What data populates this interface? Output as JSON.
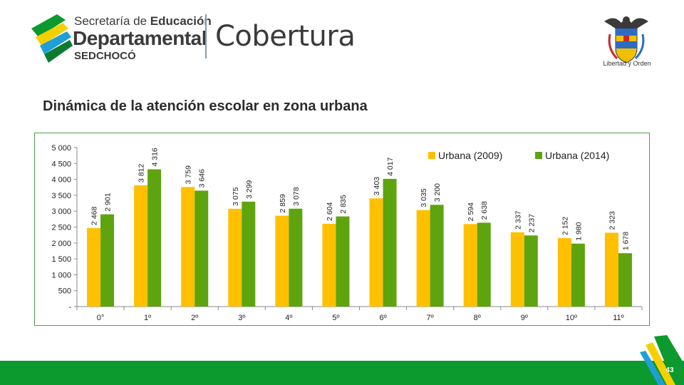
{
  "header": {
    "logo_line1_prefix": "Secretaría de ",
    "logo_line1_bold": "Educación",
    "logo_line2": "Departamental",
    "logo_line3": "SEDCHOCÓ",
    "logo_cobertura": "Cobertura",
    "seal_motto": "Libertad y Orden"
  },
  "title": "Dinámica de la atención escolar en zona urbana",
  "page_number": "43",
  "colors": {
    "series_2009": "#ffc000",
    "series_2014": "#5ea40e",
    "footer_green": "#0c9a2e",
    "frame_green": "#4aa04a"
  },
  "chart_data": {
    "type": "bar",
    "categories": [
      "0°",
      "1º",
      "2º",
      "3º",
      "4º",
      "5º",
      "6º",
      "7º",
      "8º",
      "9º",
      "10º",
      "11º"
    ],
    "series": [
      {
        "name": "Urbana (2009)",
        "values": [
          2468,
          3812,
          3759,
          3075,
          2859,
          2604,
          3403,
          3035,
          2594,
          2337,
          2152,
          2323
        ],
        "labels": [
          "2 468",
          "3 812",
          "3 759",
          "3 075",
          "2 859",
          "2 604",
          "3 403",
          "3 035",
          "2 594",
          "2 337",
          "2 152",
          "2 323"
        ]
      },
      {
        "name": "Urbana (2014)",
        "values": [
          2901,
          4316,
          3646,
          3299,
          3078,
          2835,
          4017,
          3200,
          2638,
          2237,
          1980,
          1678
        ],
        "labels": [
          "2 901",
          "4 316",
          "3 646",
          "3 299",
          "3 078",
          "2 835",
          "4 017",
          "3 200",
          "2 638",
          "2 237",
          "1 980",
          "1 678"
        ]
      }
    ],
    "ylim": [
      0,
      5000
    ],
    "yticks": [
      0,
      500,
      1000,
      1500,
      2000,
      2500,
      3000,
      3500,
      4000,
      4500,
      5000
    ],
    "ytick_labels": [
      "-",
      "500",
      "1 000",
      "1 500",
      "2 000",
      "2 500",
      "3 000",
      "3 500",
      "4 000",
      "4 500",
      "5 000"
    ],
    "legend_position": "top-right",
    "grid": false
  }
}
